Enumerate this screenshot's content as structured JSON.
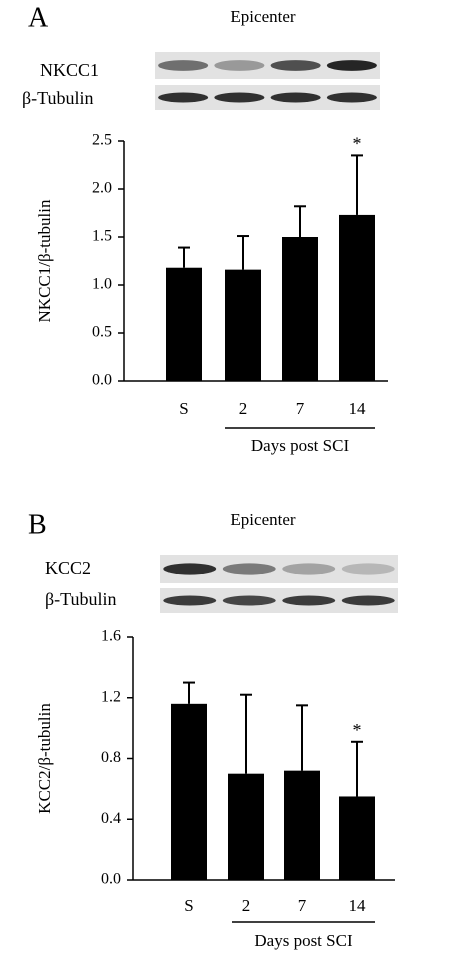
{
  "chart_data": [
    {
      "type": "bar",
      "panel_label": "A",
      "title": "Epicenter",
      "blot_labels": [
        "NKCC1",
        "β-Tubulin"
      ],
      "ylabel": "NKCC1/β-tubulin",
      "xlabel": "Days post SCI",
      "categories": [
        "S",
        "2",
        "7",
        "14"
      ],
      "values": [
        1.18,
        1.16,
        1.5,
        1.73
      ],
      "errors": [
        0.21,
        0.35,
        0.32,
        0.62
      ],
      "annotations": [
        null,
        null,
        null,
        "*"
      ],
      "color": "#000000",
      "ylim": [
        0,
        2.5
      ],
      "yticks": [
        {
          "value": 0,
          "label": "0.0"
        },
        0.5,
        {
          "value": 1,
          "label": "1.0"
        },
        1.5,
        {
          "value": 2,
          "label": "2.0"
        },
        2.5
      ]
    },
    {
      "type": "bar",
      "panel_label": "B",
      "title": "Epicenter",
      "blot_labels": [
        "KCC2",
        "β-Tubulin"
      ],
      "ylabel": "KCC2/β-tubulin",
      "xlabel": "Days post SCI",
      "categories": [
        "S",
        "2",
        "7",
        "14"
      ],
      "values": [
        1.16,
        0.7,
        0.72,
        0.55
      ],
      "errors": [
        0.14,
        0.52,
        0.43,
        0.36
      ],
      "annotations": [
        null,
        null,
        null,
        "*"
      ],
      "color": "#000000",
      "ylim": [
        0,
        1.6
      ],
      "yticks": [
        {
          "value": 0,
          "label": "0.0"
        },
        0.4,
        0.8,
        1.2,
        1.6
      ]
    }
  ]
}
